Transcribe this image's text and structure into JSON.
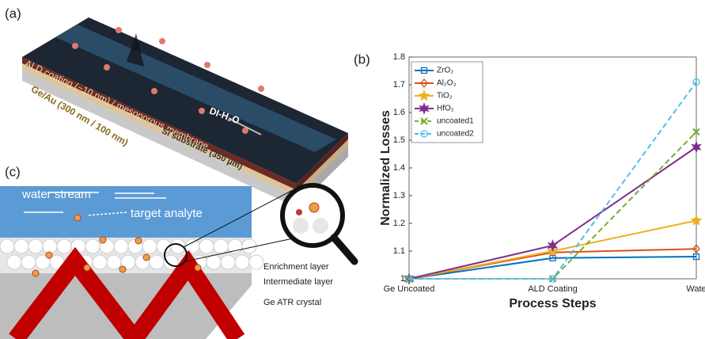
{
  "panel_a": {
    "label": "(a)",
    "coating": "ALD coating (~10 nm) / mesoporous membrane",
    "metal": "Ge/Au (300 nm / 100 nm)",
    "substrate": "Si substrate (350 µm)",
    "water": "DI-H₂O"
  },
  "panel_c": {
    "label": "(c)",
    "stream": "water stream",
    "analyte": "target analyte",
    "layers": [
      "Enrichment layer",
      "Intermediate layer",
      "Ge ATR crystal"
    ]
  },
  "chart_data": {
    "type": "line",
    "label": "(b)",
    "xlabel": "Process Steps",
    "ylabel": "Normalized Losses",
    "categories": [
      "Ge Uncoated",
      "ALD Coating",
      "Wate"
    ],
    "ylim": [
      1,
      1.8
    ],
    "yticks": [
      1,
      1.1,
      1.2,
      1.3,
      1.4,
      1.5,
      1.6,
      1.7,
      1.8
    ],
    "legend": "upper left",
    "series": [
      {
        "name": "ZrO₂",
        "color": "#0072BD",
        "marker": "square",
        "dashed": false,
        "values": [
          1,
          1.075,
          1.08
        ]
      },
      {
        "name": "Al₂O₃",
        "color": "#D95319",
        "marker": "diamond",
        "dashed": false,
        "values": [
          1,
          1.095,
          1.108
        ]
      },
      {
        "name": "TiO₂",
        "color": "#EDB120",
        "marker": "star",
        "dashed": false,
        "values": [
          1,
          1.1,
          1.21
        ]
      },
      {
        "name": "HfO₂",
        "color": "#7E2F8E",
        "marker": "star",
        "dashed": false,
        "values": [
          1,
          1.12,
          1.475
        ]
      },
      {
        "name": "uncoated1",
        "color": "#77AC30",
        "marker": "x",
        "dashed": true,
        "values": [
          1,
          1,
          1.53
        ]
      },
      {
        "name": "uncoated2",
        "color": "#4DBEEE",
        "marker": "circle",
        "dashed": true,
        "values": [
          1,
          1,
          1.71
        ]
      }
    ]
  }
}
